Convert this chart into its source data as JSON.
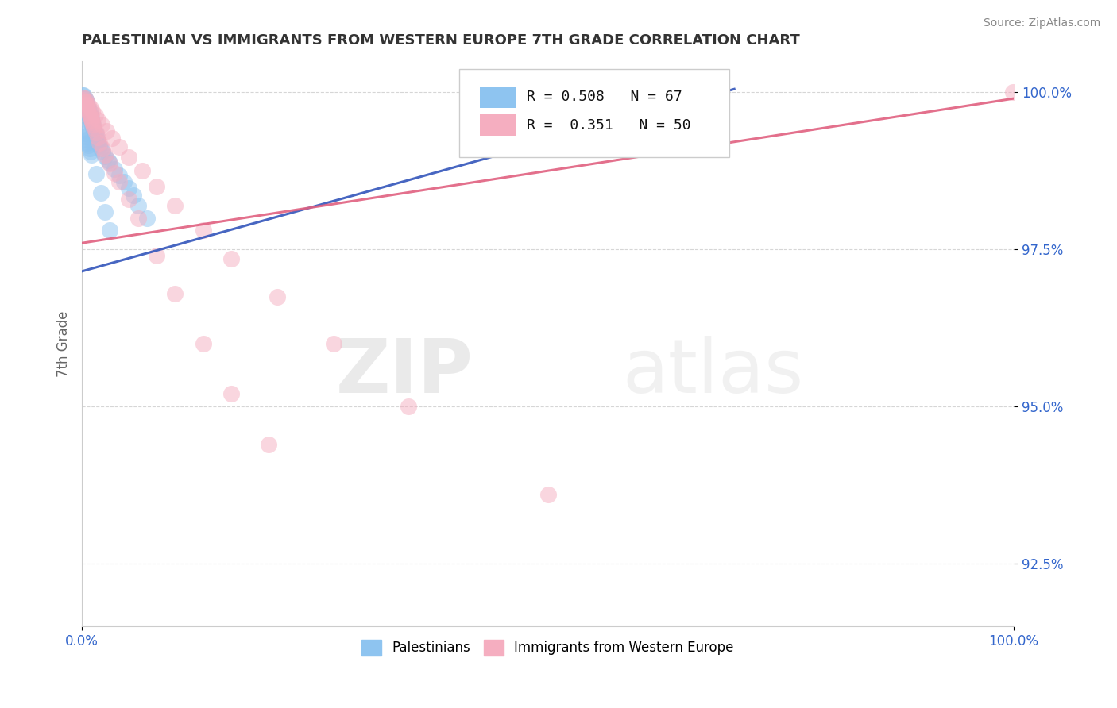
{
  "title": "PALESTINIAN VS IMMIGRANTS FROM WESTERN EUROPE 7TH GRADE CORRELATION CHART",
  "source": "Source: ZipAtlas.com",
  "xlabel": "",
  "ylabel": "7th Grade",
  "xlim": [
    0,
    1.0
  ],
  "ylim": [
    0.915,
    1.005
  ],
  "yticks": [
    0.925,
    0.95,
    0.975,
    1.0
  ],
  "ytick_labels": [
    "92.5%",
    "95.0%",
    "97.5%",
    "100.0%"
  ],
  "xticks": [
    0.0,
    1.0
  ],
  "xtick_labels": [
    "0.0%",
    "100.0%"
  ],
  "legend1_r": "0.508",
  "legend1_n": "67",
  "legend2_r": "0.351",
  "legend2_n": "50",
  "blue_color": "#8ec4f0",
  "pink_color": "#f5aec0",
  "blue_line_color": "#3355bb",
  "pink_line_color": "#e06080",
  "watermark_zip": "ZIP",
  "watermark_atlas": "atlas",
  "palestinians_x": [
    0.001,
    0.001,
    0.002,
    0.002,
    0.002,
    0.003,
    0.003,
    0.003,
    0.004,
    0.004,
    0.004,
    0.005,
    0.005,
    0.005,
    0.005,
    0.006,
    0.006,
    0.006,
    0.007,
    0.007,
    0.007,
    0.007,
    0.008,
    0.008,
    0.008,
    0.009,
    0.009,
    0.01,
    0.01,
    0.01,
    0.011,
    0.011,
    0.012,
    0.012,
    0.013,
    0.014,
    0.015,
    0.015,
    0.016,
    0.017,
    0.018,
    0.019,
    0.02,
    0.022,
    0.025,
    0.028,
    0.03,
    0.035,
    0.04,
    0.045,
    0.05,
    0.055,
    0.06,
    0.07,
    0.002,
    0.003,
    0.004,
    0.005,
    0.006,
    0.007,
    0.008,
    0.009,
    0.01,
    0.015,
    0.02,
    0.025,
    0.03
  ],
  "palestinians_y": [
    0.9995,
    0.999,
    0.9995,
    0.999,
    0.9985,
    0.999,
    0.9985,
    0.998,
    0.9988,
    0.9983,
    0.9978,
    0.9985,
    0.998,
    0.9975,
    0.997,
    0.9978,
    0.9973,
    0.9968,
    0.9975,
    0.997,
    0.9965,
    0.996,
    0.997,
    0.9965,
    0.996,
    0.9962,
    0.9957,
    0.996,
    0.9955,
    0.995,
    0.9952,
    0.9947,
    0.9948,
    0.9943,
    0.994,
    0.9936,
    0.9933,
    0.9928,
    0.9925,
    0.9922,
    0.9918,
    0.9914,
    0.991,
    0.9905,
    0.9898,
    0.9892,
    0.9888,
    0.9878,
    0.9868,
    0.9858,
    0.9848,
    0.9836,
    0.982,
    0.98,
    0.994,
    0.9935,
    0.993,
    0.9925,
    0.992,
    0.9915,
    0.991,
    0.9905,
    0.99,
    0.987,
    0.984,
    0.981,
    0.978
  ],
  "immigrants_x": [
    0.001,
    0.002,
    0.003,
    0.004,
    0.005,
    0.006,
    0.007,
    0.008,
    0.009,
    0.01,
    0.011,
    0.012,
    0.013,
    0.015,
    0.017,
    0.019,
    0.022,
    0.025,
    0.03,
    0.035,
    0.04,
    0.05,
    0.06,
    0.08,
    0.1,
    0.13,
    0.16,
    0.2,
    0.003,
    0.005,
    0.007,
    0.009,
    0.011,
    0.014,
    0.017,
    0.021,
    0.026,
    0.032,
    0.04,
    0.05,
    0.065,
    0.08,
    0.1,
    0.13,
    0.16,
    0.21,
    0.27,
    0.35,
    0.5,
    0.999
  ],
  "immigrants_y": [
    0.9992,
    0.9988,
    0.9984,
    0.998,
    0.9976,
    0.9972,
    0.9968,
    0.9964,
    0.996,
    0.9956,
    0.9952,
    0.9948,
    0.9944,
    0.9936,
    0.9928,
    0.992,
    0.991,
    0.99,
    0.9886,
    0.9872,
    0.9858,
    0.983,
    0.98,
    0.974,
    0.968,
    0.96,
    0.952,
    0.944,
    0.999,
    0.9985,
    0.998,
    0.9975,
    0.997,
    0.9963,
    0.9956,
    0.9948,
    0.9938,
    0.9927,
    0.9913,
    0.9897,
    0.9875,
    0.985,
    0.982,
    0.978,
    0.9735,
    0.9675,
    0.96,
    0.95,
    0.936,
    1.0
  ],
  "blue_line_x": [
    0.0,
    0.7
  ],
  "blue_line_y": [
    0.9715,
    1.0005
  ],
  "pink_line_x": [
    0.0,
    1.0
  ],
  "pink_line_y": [
    0.976,
    0.999
  ]
}
